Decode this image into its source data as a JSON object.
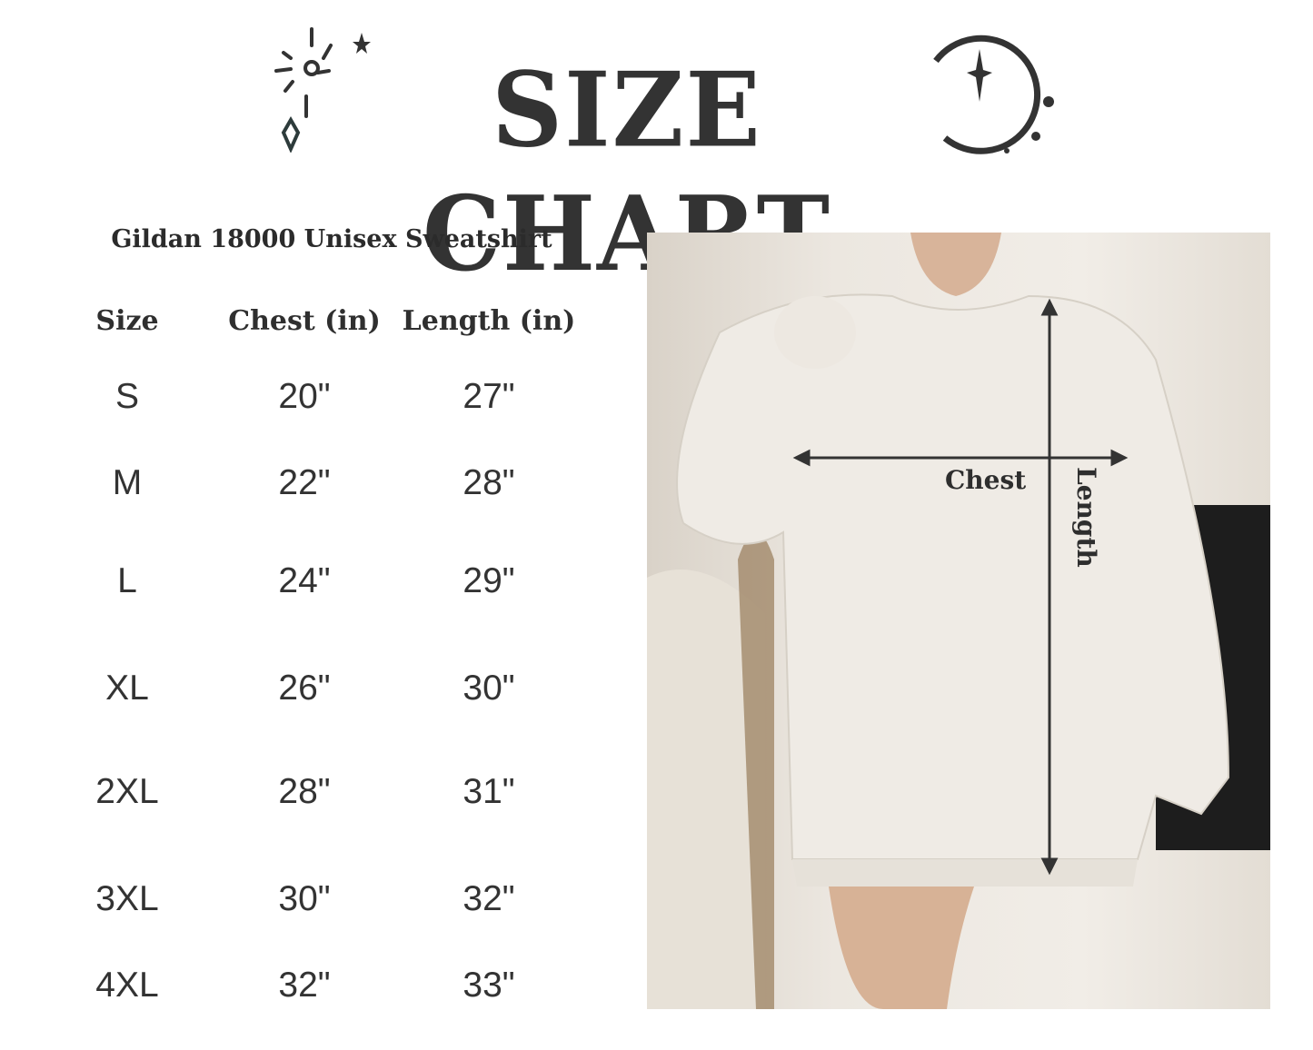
{
  "header": {
    "title": "SIZE CHART"
  },
  "product": {
    "name": "Gildan 18000 Unisex Sweatshirt"
  },
  "table": {
    "columns": [
      "Size",
      "Chest (in)",
      "Length (in)"
    ],
    "rows": [
      [
        "S",
        "20\"",
        "27\""
      ],
      [
        "M",
        "22\"",
        "28\""
      ],
      [
        "L",
        "24\"",
        "29\""
      ],
      [
        "XL",
        "26\"",
        "30\""
      ],
      [
        "2XL",
        "28\"",
        "31\""
      ],
      [
        "3XL",
        "30\"",
        "32\""
      ],
      [
        "4XL",
        "32\"",
        "33\""
      ]
    ]
  },
  "photo": {
    "chest_label": "Chest",
    "length_label": "Length"
  }
}
